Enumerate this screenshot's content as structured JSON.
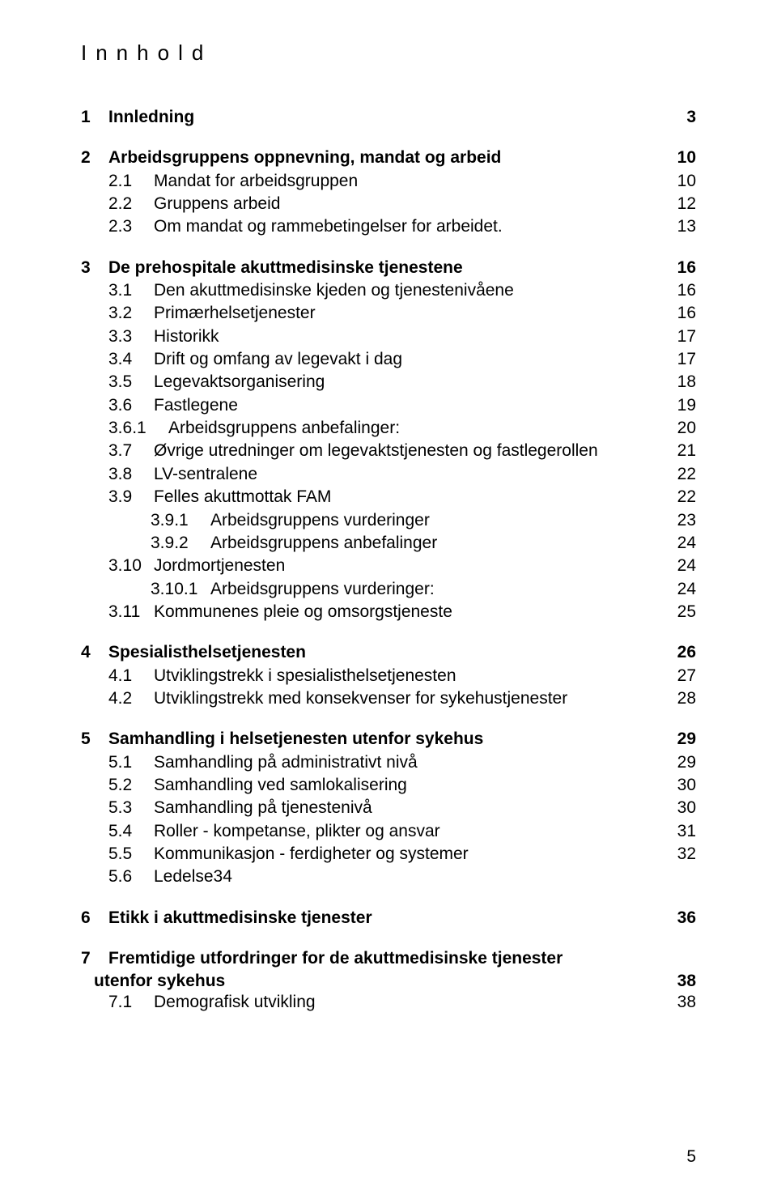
{
  "colors": {
    "background": "#ffffff",
    "text": "#000000"
  },
  "typography": {
    "font_family": "Arial",
    "title_fontsize": 26,
    "title_letter_spacing": 11,
    "body_fontsize": 21,
    "line_height": 1.35
  },
  "title": "Innhold",
  "footer_page_number": "5",
  "toc": [
    {
      "level": 0,
      "num": "1",
      "label": "Innledning",
      "page": "3"
    },
    {
      "level": 0,
      "num": "2",
      "label": "Arbeidsgruppens oppnevning, mandat og arbeid",
      "page": "10"
    },
    {
      "level": 1,
      "num": "2.1",
      "label": "Mandat for arbeidsgruppen",
      "page": "10"
    },
    {
      "level": 1,
      "num": "2.2",
      "label": "Gruppens arbeid",
      "page": "12"
    },
    {
      "level": 1,
      "num": "2.3",
      "label": "Om mandat og rammebetingelser for arbeidet.",
      "page": "13"
    },
    {
      "level": 0,
      "num": "3",
      "label": "De prehospitale akuttmedisinske tjenestene",
      "page": "16"
    },
    {
      "level": 1,
      "num": "3.1",
      "label": "Den akuttmedisinske kjeden og tjenestenivåene",
      "page": "16"
    },
    {
      "level": 1,
      "num": "3.2",
      "label": "Primærhelsetjenester",
      "page": "16"
    },
    {
      "level": 1,
      "num": "3.3",
      "label": "Historikk",
      "page": "17"
    },
    {
      "level": 1,
      "num": "3.4",
      "label": "Drift og omfang av legevakt i dag",
      "page": "17"
    },
    {
      "level": 1,
      "num": "3.5",
      "label": "Legevaktsorganisering",
      "page": "18"
    },
    {
      "level": 1,
      "num": "3.6",
      "label": "Fastlegene",
      "page": "19"
    },
    {
      "level": 2,
      "num": "3.6.1",
      "label": "Arbeidsgruppens anbefalinger:",
      "page": "20",
      "half": true
    },
    {
      "level": 1,
      "num": "3.7",
      "label": "Øvrige utredninger om legevaktstjenesten og fastlegerollen",
      "page": "21"
    },
    {
      "level": 1,
      "num": "3.8",
      "label": "LV-sentralene",
      "page": "22"
    },
    {
      "level": 1,
      "num": "3.9",
      "label": "Felles akuttmottak FAM",
      "page": "22"
    },
    {
      "level": 2,
      "num": "3.9.1",
      "label": "Arbeidsgruppens vurderinger",
      "page": "23"
    },
    {
      "level": 2,
      "num": "3.9.2",
      "label": "Arbeidsgruppens anbefalinger",
      "page": "24"
    },
    {
      "level": 1,
      "num": "3.10",
      "label": "Jordmortjenesten",
      "page": "24"
    },
    {
      "level": 2,
      "num": "3.10.1",
      "label": "Arbeidsgruppens vurderinger:",
      "page": "24"
    },
    {
      "level": 1,
      "num": "3.11",
      "label": "Kommunenes pleie og omsorgstjeneste",
      "page": "25"
    },
    {
      "level": 0,
      "num": "4",
      "label": "Spesialisthelsetjenesten",
      "page": "26"
    },
    {
      "level": 1,
      "num": "4.1",
      "label": "Utviklingstrekk i spesialisthelsetjenesten",
      "page": "27"
    },
    {
      "level": 1,
      "num": "4.2",
      "label": "Utviklingstrekk med konsekvenser for sykehustjenester",
      "page": "28"
    },
    {
      "level": 0,
      "num": "5",
      "label": "Samhandling i helsetjenesten utenfor sykehus",
      "page": "29"
    },
    {
      "level": 1,
      "num": "5.1",
      "label": "Samhandling på administrativt nivå",
      "page": "29"
    },
    {
      "level": 1,
      "num": "5.2",
      "label": "Samhandling ved samlokalisering",
      "page": "30"
    },
    {
      "level": 1,
      "num": "5.3",
      "label": "Samhandling på tjenestenivå",
      "page": "30"
    },
    {
      "level": 1,
      "num": "5.4",
      "label": "Roller - kompetanse, plikter og ansvar",
      "page": "31"
    },
    {
      "level": 1,
      "num": "5.5",
      "label": "Kommunikasjon - ferdigheter og systemer",
      "page": "32"
    },
    {
      "level": 1,
      "num": "5.6",
      "label": "Ledelse34",
      "page": ""
    },
    {
      "level": 0,
      "num": "6",
      "label": "Etikk i akuttmedisinske tjenester",
      "page": "36"
    },
    {
      "level": 0,
      "num": "7",
      "label": "Fremtidige utfordringer for de akuttmedisinske tjenester",
      "page": ""
    }
  ],
  "standalone": {
    "label": "utenfor sykehus",
    "page": "38"
  },
  "tail": [
    {
      "level": 1,
      "num": "7.1",
      "label": "Demografisk utvikling",
      "page": "38"
    }
  ]
}
